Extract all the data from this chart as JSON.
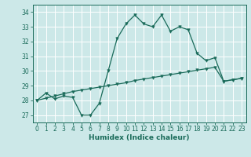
{
  "xlabel": "Humidex (Indice chaleur)",
  "bg_color": "#cce8e8",
  "grid_color": "#ffffff",
  "line_color": "#1a6b5a",
  "xlim": [
    -0.5,
    23.5
  ],
  "ylim": [
    26.5,
    34.5
  ],
  "xticks": [
    0,
    1,
    2,
    3,
    4,
    5,
    6,
    7,
    8,
    9,
    10,
    11,
    12,
    13,
    14,
    15,
    16,
    17,
    18,
    19,
    20,
    21,
    22,
    23
  ],
  "yticks": [
    27,
    28,
    29,
    30,
    31,
    32,
    33,
    34
  ],
  "series1_x": [
    0,
    1,
    2,
    3,
    4,
    5,
    6,
    7,
    8,
    9,
    10,
    11,
    12,
    13,
    14,
    15,
    16,
    17,
    18,
    19,
    20,
    21,
    22,
    23
  ],
  "series1_y": [
    28.0,
    28.5,
    28.1,
    28.3,
    28.2,
    27.0,
    27.0,
    27.8,
    30.0,
    32.2,
    33.2,
    33.8,
    33.2,
    33.0,
    33.8,
    32.7,
    33.0,
    32.8,
    31.2,
    30.7,
    30.9,
    29.3,
    29.4,
    29.5
  ],
  "series2_x": [
    0,
    1,
    2,
    3,
    4,
    5,
    6,
    7,
    8,
    9,
    10,
    11,
    12,
    13,
    14,
    15,
    16,
    17,
    18,
    19,
    20,
    21,
    22,
    23
  ],
  "series2_y": [
    28.0,
    28.15,
    28.3,
    28.45,
    28.6,
    28.7,
    28.8,
    28.9,
    29.0,
    29.1,
    29.2,
    29.35,
    29.45,
    29.55,
    29.65,
    29.75,
    29.85,
    29.95,
    30.05,
    30.15,
    30.25,
    29.3,
    29.4,
    29.5
  ]
}
